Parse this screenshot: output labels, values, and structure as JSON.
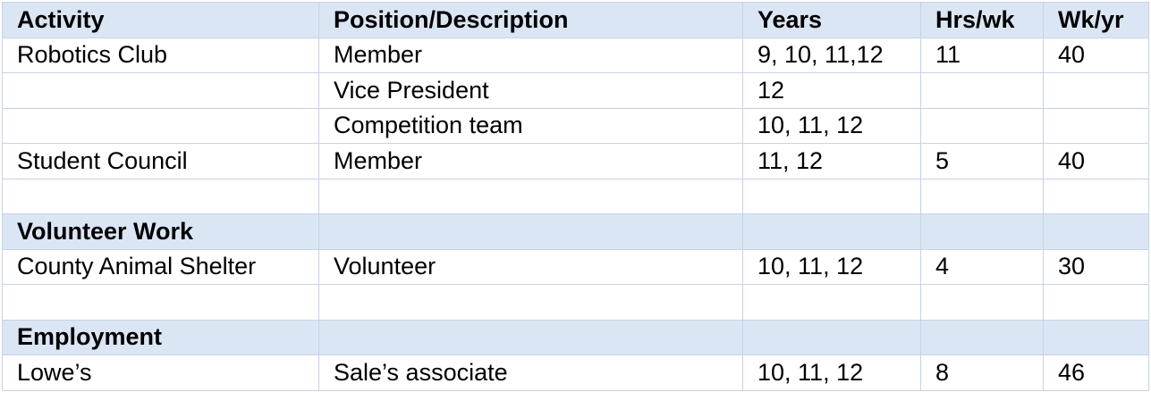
{
  "headers": {
    "activity": "Activity",
    "position": "Position/Description",
    "years": "Years",
    "hrs": "Hrs/wk",
    "wks": "Wk/yr"
  },
  "rows": [
    {
      "activity": "Robotics Club",
      "position": "Member",
      "years": "9, 10, 11,12",
      "hrs": "11",
      "wks": "40"
    },
    {
      "activity": "",
      "position": "Vice President",
      "years": "12",
      "hrs": "",
      "wks": ""
    },
    {
      "activity": "",
      "position": "Competition team",
      "years": "10, 11, 12",
      "hrs": "",
      "wks": ""
    },
    {
      "activity": "Student Council",
      "position": "Member",
      "years": "11, 12",
      "hrs": "5",
      "wks": "40"
    }
  ],
  "sections": {
    "volunteer": {
      "title": "Volunteer Work",
      "rows": [
        {
          "activity": "County Animal Shelter",
          "position": "Volunteer",
          "years": "10, 11, 12",
          "hrs": "4",
          "wks": "30"
        }
      ]
    },
    "employment": {
      "title": "Employment",
      "rows": [
        {
          "activity": "Lowe’s",
          "position": "Sale’s associate",
          "years": "10, 11, 12",
          "hrs": "8",
          "wks": "46"
        }
      ]
    }
  },
  "colors": {
    "header_bg": "#dbe6f4",
    "border": "#c4d3e8"
  }
}
